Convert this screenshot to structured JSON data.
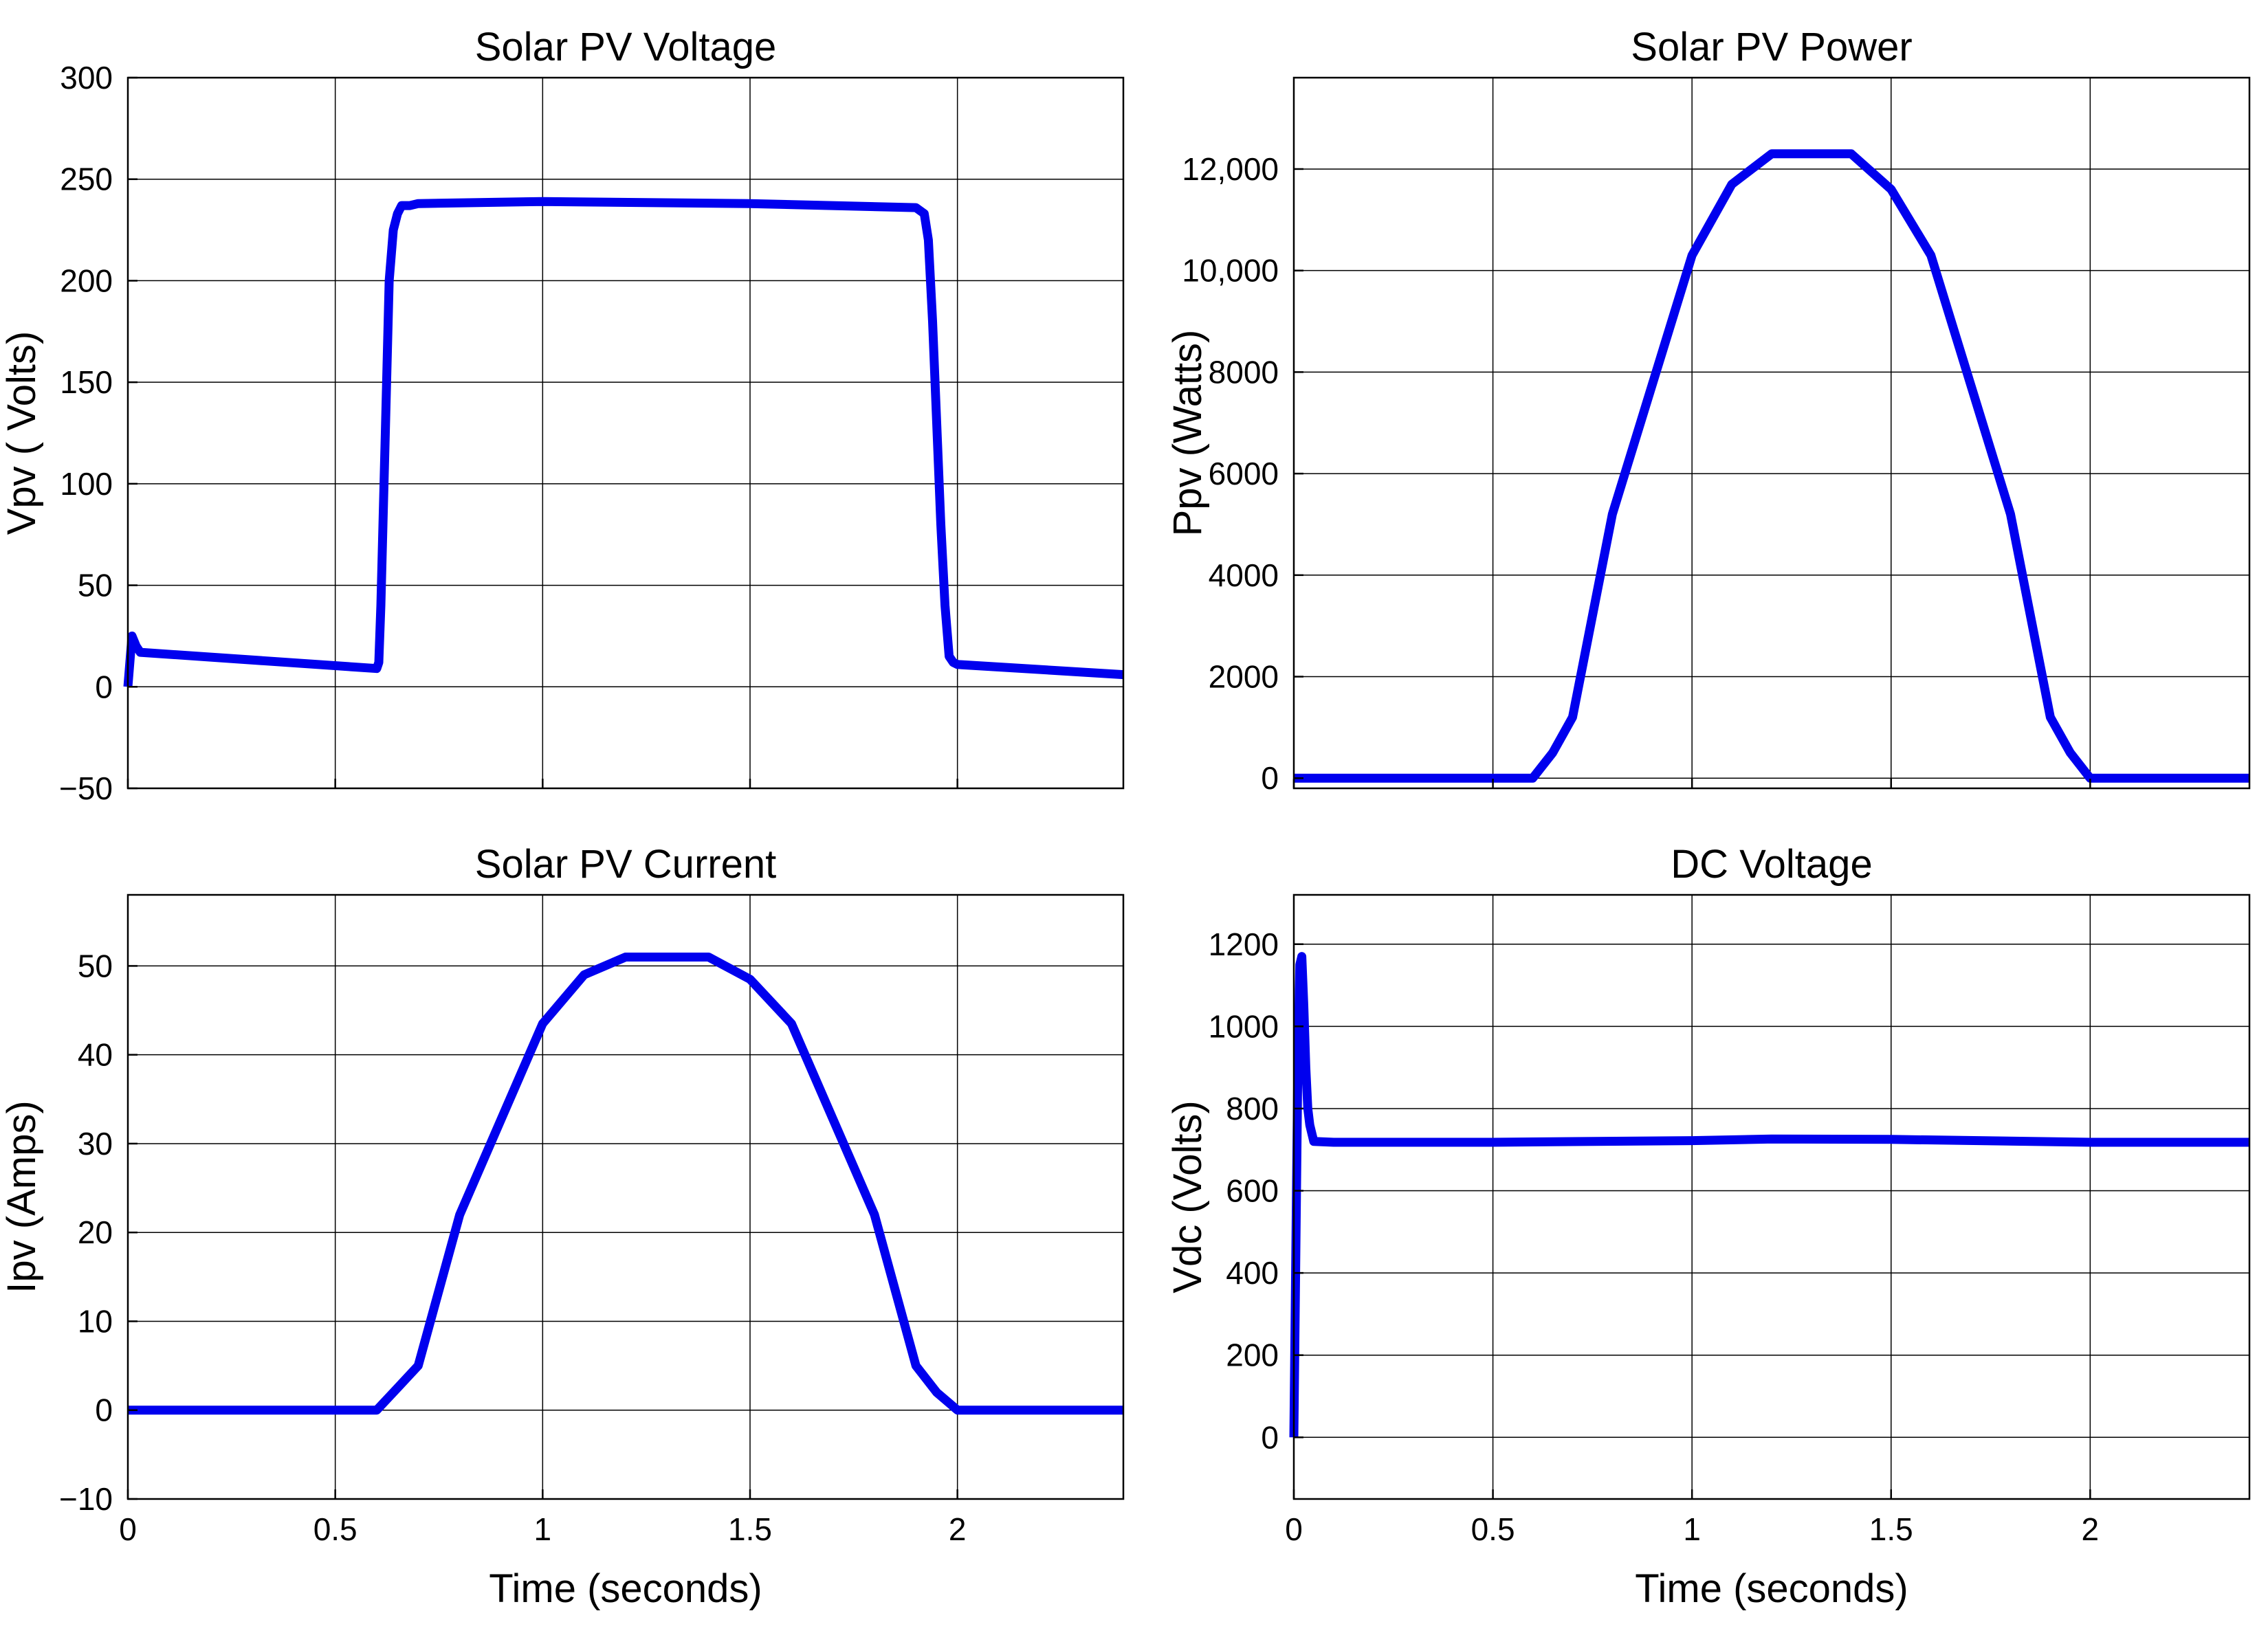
{
  "colors": {
    "series": "#0000ee",
    "grid": "#000000",
    "axes": "#000000",
    "background": "#ffffff"
  },
  "chart_data": [
    {
      "type": "line",
      "title": "Solar PV Voltage",
      "xlabel": "",
      "ylabel": "Vpv ( Volts)",
      "xlim": [
        0,
        2.4
      ],
      "ylim": [
        -50,
        300
      ],
      "xticks": [
        0,
        0.5,
        1,
        1.5,
        2
      ],
      "xtick_labels": [
        "",
        "",
        "",
        "",
        ""
      ],
      "yticks": [
        -50,
        0,
        50,
        100,
        150,
        200,
        250,
        300
      ],
      "ytick_labels": [
        "−50",
        "0",
        "50",
        "100",
        "150",
        "200",
        "250",
        "300"
      ],
      "grid": true,
      "series": [
        {
          "x": [
            0,
            0.01,
            0.02,
            0.03,
            0.6,
            0.605,
            0.61,
            0.62,
            0.63,
            0.64,
            0.65,
            0.66,
            0.68,
            0.7,
            1.0,
            1.5,
            1.9,
            1.92,
            1.93,
            1.94,
            1.95,
            1.96,
            1.97,
            1.98,
            1.99,
            2.0,
            2.4
          ],
          "y": [
            0,
            25,
            20,
            17,
            9,
            12,
            40,
            120,
            200,
            225,
            233,
            237,
            237,
            238,
            239,
            238,
            236,
            233,
            220,
            180,
            130,
            80,
            40,
            15,
            12,
            11,
            6
          ]
        }
      ]
    },
    {
      "type": "line",
      "title": "Solar PV Power",
      "xlabel": "",
      "ylabel": "Ppv (Watts)",
      "xlim": [
        0,
        2.4
      ],
      "ylim": [
        -200,
        13800
      ],
      "xticks": [
        0,
        0.5,
        1,
        1.5,
        2
      ],
      "xtick_labels": [
        "",
        "",
        "",
        "",
        ""
      ],
      "yticks": [
        0,
        2000,
        4000,
        6000,
        8000,
        10000,
        12000
      ],
      "ytick_labels": [
        "0",
        "2000",
        "4000",
        "6000",
        "8000",
        "10,000",
        "12,000"
      ],
      "grid": true,
      "series": [
        {
          "x": [
            0,
            0.6,
            0.65,
            0.7,
            0.8,
            1.0,
            1.1,
            1.2,
            1.3,
            1.4,
            1.5,
            1.6,
            1.8,
            1.9,
            1.95,
            2.0,
            2.4
          ],
          "y": [
            0,
            0,
            500,
            1200,
            5200,
            10300,
            11700,
            12300,
            12300,
            12300,
            11600,
            10300,
            5200,
            1200,
            500,
            0,
            0
          ]
        }
      ]
    },
    {
      "type": "line",
      "title": "Solar PV Current",
      "xlabel": "Time (seconds)",
      "ylabel": "Ipv (Amps)",
      "xlim": [
        0,
        2.4
      ],
      "ylim": [
        -10,
        58
      ],
      "xticks": [
        0,
        0.5,
        1,
        1.5,
        2
      ],
      "xtick_labels": [
        "0",
        "0.5",
        "1",
        "1.5",
        "2"
      ],
      "yticks": [
        -10,
        0,
        10,
        20,
        30,
        40,
        50
      ],
      "ytick_labels": [
        "−10",
        "0",
        "10",
        "20",
        "30",
        "40",
        "50"
      ],
      "grid": true,
      "series": [
        {
          "x": [
            0,
            0.6,
            0.65,
            0.7,
            0.8,
            1.0,
            1.1,
            1.2,
            1.3,
            1.4,
            1.5,
            1.6,
            1.8,
            1.9,
            1.95,
            2.0,
            2.4
          ],
          "y": [
            0,
            0,
            2.5,
            5,
            22,
            43.5,
            49,
            51,
            51,
            51,
            48.5,
            43.5,
            22,
            5,
            2,
            0,
            0
          ]
        }
      ]
    },
    {
      "type": "line",
      "title": "DC Voltage",
      "xlabel": "Time (seconds)",
      "ylabel": "Vdc (Volts)",
      "xlim": [
        0,
        2.4
      ],
      "ylim": [
        -150,
        1320
      ],
      "xticks": [
        0,
        0.5,
        1,
        1.5,
        2
      ],
      "xtick_labels": [
        "0",
        "0.5",
        "1",
        "1.5",
        "2"
      ],
      "yticks": [
        0,
        200,
        400,
        600,
        800,
        1000,
        1200
      ],
      "ytick_labels": [
        "0",
        "200",
        "400",
        "600",
        "800",
        "1000",
        "1200"
      ],
      "grid": true,
      "series": [
        {
          "x": [
            0,
            0.005,
            0.01,
            0.015,
            0.02,
            0.025,
            0.03,
            0.035,
            0.04,
            0.05,
            0.1,
            0.5,
            1.0,
            1.2,
            1.5,
            2.0,
            2.4
          ],
          "y": [
            0,
            450,
            900,
            1150,
            1170,
            1050,
            900,
            800,
            760,
            720,
            718,
            718,
            722,
            726,
            725,
            718,
            718
          ]
        }
      ]
    }
  ]
}
